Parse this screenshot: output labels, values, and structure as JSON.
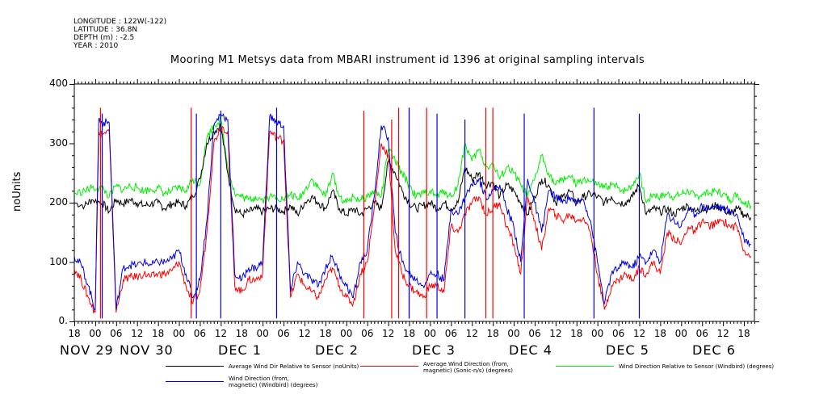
{
  "header": {
    "longitude": "LONGITUDE : 122W(-122)",
    "latitude": "LATITUDE : 36.8N",
    "depth": "DEPTH (m) : -2.5",
    "year": "YEAR : 2010"
  },
  "chart_data": {
    "type": "line",
    "title": "Mooring M1 Metsys data from MBARI instrument id 1396 at original sampling intervals",
    "ylabel": "noUnits",
    "ylim": [
      0,
      400
    ],
    "yticks": [
      "0.",
      "100",
      "200",
      "300",
      "400"
    ],
    "xlim_hours": [
      0,
      195
    ],
    "x_unit": "hours since NOV 28 18:00",
    "xtick_labels": [
      "18",
      "00",
      "06",
      "12",
      "18",
      "00",
      "06",
      "12",
      "18",
      "00",
      "06",
      "12",
      "18",
      "00",
      "06",
      "12",
      "18",
      "00",
      "06",
      "12",
      "18",
      "00",
      "06",
      "12",
      "18",
      "00",
      "06",
      "12",
      "18",
      "00",
      "06",
      "12",
      "18"
    ],
    "day_labels": [
      "NOV 29",
      "NOV 30",
      "DEC  1",
      "DEC  2",
      "DEC  3",
      "DEC  4",
      "DEC  5",
      "DEC  6"
    ],
    "series": [
      {
        "name": "Average Wind Dir Relative to Sensor (noUnits)",
        "color": "#000000",
        "x": [
          0,
          3,
          5,
          8,
          10,
          12,
          14,
          16,
          18,
          20,
          22,
          24,
          26,
          28,
          30,
          32,
          34,
          36,
          38,
          40,
          42,
          44,
          46,
          48,
          50,
          52,
          54,
          56,
          58,
          60,
          62,
          64,
          66,
          68,
          70,
          72,
          74,
          76,
          78,
          80,
          82,
          84,
          86,
          88,
          90,
          92,
          94,
          96,
          98,
          100,
          102,
          104,
          106,
          108,
          110,
          112,
          114,
          116,
          118,
          120,
          122,
          124,
          126,
          128,
          130,
          132,
          134,
          136,
          138,
          140,
          142,
          144,
          146,
          148,
          150,
          152,
          154,
          156,
          158,
          160,
          162,
          164,
          166,
          168,
          170,
          172,
          174,
          176,
          178,
          180,
          182,
          184,
          186,
          188,
          190,
          192,
          194
        ],
        "y": [
          200,
          195,
          205,
          200,
          185,
          205,
          198,
          205,
          200,
          195,
          198,
          200,
          190,
          198,
          200,
          195,
          210,
          240,
          300,
          320,
          330,
          250,
          190,
          180,
          185,
          190,
          185,
          190,
          190,
          185,
          195,
          180,
          200,
          210,
          200,
          190,
          220,
          190,
          180,
          190,
          180,
          190,
          200,
          190,
          270,
          250,
          220,
          200,
          190,
          195,
          200,
          190,
          200,
          190,
          200,
          260,
          240,
          250,
          230,
          235,
          210,
          230,
          220,
          200,
          180,
          210,
          240,
          230,
          200,
          210,
          220,
          200,
          210,
          215,
          210,
          200,
          210,
          200,
          200,
          210,
          230,
          180,
          190,
          185,
          190,
          180,
          190,
          195,
          185,
          190,
          190,
          195,
          190,
          180,
          190,
          180,
          175
        ]
      },
      {
        "name": "Average Wind Direction (from, magnetic) (Sonic-n/s) (degrees)",
        "color": "#ff0000",
        "x": [
          0,
          2,
          4,
          6,
          7,
          8,
          10,
          12,
          14,
          16,
          18,
          20,
          22,
          24,
          26,
          28,
          30,
          32,
          34,
          36,
          38,
          40,
          42,
          44,
          46,
          48,
          50,
          52,
          54,
          56,
          58,
          60,
          62,
          64,
          66,
          68,
          70,
          72,
          74,
          76,
          78,
          80,
          82,
          84,
          86,
          88,
          90,
          92,
          94,
          96,
          98,
          100,
          102,
          104,
          106,
          108,
          110,
          112,
          114,
          116,
          118,
          120,
          122,
          124,
          126,
          128,
          130,
          132,
          134,
          136,
          138,
          140,
          142,
          144,
          146,
          148,
          150,
          152,
          154,
          156,
          158,
          160,
          162,
          164,
          166,
          168,
          170,
          172,
          174,
          176,
          178,
          180,
          182,
          184,
          186,
          188,
          190,
          192,
          194
        ],
        "y": [
          90,
          70,
          40,
          15,
          320,
          315,
          320,
          15,
          70,
          75,
          75,
          80,
          75,
          80,
          80,
          85,
          100,
          60,
          30,
          50,
          150,
          300,
          330,
          320,
          60,
          50,
          70,
          70,
          80,
          320,
          310,
          305,
          40,
          80,
          60,
          50,
          40,
          70,
          90,
          60,
          40,
          30,
          80,
          100,
          190,
          300,
          280,
          120,
          80,
          60,
          50,
          40,
          60,
          60,
          50,
          160,
          150,
          180,
          200,
          210,
          180,
          190,
          200,
          160,
          130,
          80,
          210,
          170,
          120,
          190,
          180,
          170,
          180,
          170,
          175,
          150,
          80,
          20,
          60,
          70,
          80,
          70,
          90,
          80,
          100,
          80,
          150,
          140,
          130,
          160,
          150,
          170,
          160,
          165,
          170,
          160,
          160,
          120,
          110
        ]
      },
      {
        "name": "Wind Direction Relative to Sensor (Windbird) (degrees)",
        "color": "#00ee00",
        "x": [
          0,
          3,
          5,
          8,
          10,
          12,
          14,
          16,
          18,
          20,
          22,
          24,
          26,
          28,
          30,
          32,
          34,
          36,
          38,
          40,
          42,
          44,
          46,
          48,
          50,
          52,
          54,
          56,
          58,
          60,
          62,
          64,
          66,
          68,
          70,
          72,
          74,
          76,
          78,
          80,
          82,
          84,
          86,
          88,
          90,
          92,
          94,
          96,
          98,
          100,
          102,
          104,
          106,
          108,
          110,
          112,
          114,
          116,
          118,
          120,
          122,
          124,
          126,
          128,
          130,
          132,
          134,
          136,
          138,
          140,
          142,
          144,
          146,
          148,
          150,
          152,
          154,
          156,
          158,
          160,
          162,
          164,
          166,
          168,
          170,
          172,
          174,
          176,
          178,
          180,
          182,
          184,
          186,
          188,
          190,
          192,
          194
        ],
        "y": [
          215,
          220,
          225,
          225,
          210,
          228,
          222,
          228,
          225,
          220,
          222,
          225,
          215,
          220,
          225,
          220,
          240,
          230,
          310,
          330,
          340,
          260,
          215,
          210,
          205,
          210,
          205,
          210,
          210,
          205,
          215,
          205,
          220,
          240,
          225,
          210,
          250,
          210,
          200,
          210,
          205,
          210,
          220,
          210,
          290,
          270,
          250,
          230,
          210,
          215,
          220,
          210,
          220,
          210,
          230,
          300,
          270,
          290,
          260,
          265,
          240,
          260,
          250,
          230,
          210,
          240,
          280,
          250,
          230,
          240,
          245,
          230,
          240,
          235,
          230,
          225,
          230,
          225,
          220,
          230,
          250,
          200,
          215,
          210,
          215,
          210,
          215,
          220,
          210,
          215,
          215,
          220,
          215,
          205,
          215,
          200,
          195
        ]
      },
      {
        "name": "Wind Direction (from, magnetic) (Windbird) (degrees)",
        "color": "#0000dd",
        "x": [
          0,
          2,
          4,
          6,
          7,
          8,
          10,
          12,
          14,
          16,
          18,
          20,
          22,
          24,
          26,
          28,
          30,
          32,
          34,
          36,
          38,
          40,
          42,
          44,
          46,
          48,
          50,
          52,
          54,
          56,
          58,
          60,
          62,
          64,
          66,
          68,
          70,
          72,
          74,
          76,
          78,
          80,
          82,
          84,
          86,
          88,
          90,
          92,
          94,
          96,
          98,
          100,
          102,
          104,
          106,
          108,
          110,
          112,
          114,
          116,
          118,
          120,
          122,
          124,
          126,
          128,
          130,
          132,
          134,
          136,
          138,
          140,
          142,
          144,
          146,
          148,
          150,
          152,
          154,
          156,
          158,
          160,
          162,
          164,
          166,
          168,
          170,
          172,
          174,
          176,
          178,
          180,
          182,
          184,
          186,
          188,
          190,
          192,
          194
        ],
        "y": [
          110,
          95,
          60,
          20,
          340,
          335,
          335,
          20,
          90,
          95,
          95,
          100,
          95,
          100,
          100,
          105,
          120,
          80,
          40,
          70,
          170,
          330,
          350,
          340,
          80,
          70,
          90,
          90,
          100,
          345,
          335,
          330,
          50,
          100,
          80,
          70,
          60,
          90,
          110,
          80,
          60,
          40,
          100,
          120,
          210,
          330,
          310,
          150,
          100,
          80,
          70,
          60,
          80,
          80,
          70,
          190,
          180,
          210,
          230,
          240,
          210,
          220,
          230,
          190,
          160,
          100,
          240,
          200,
          150,
          220,
          210,
          200,
          210,
          200,
          205,
          170,
          100,
          30,
          80,
          90,
          100,
          90,
          110,
          100,
          120,
          100,
          180,
          170,
          160,
          190,
          180,
          195,
          190,
          195,
          190,
          185,
          180,
          140,
          130
        ]
      }
    ],
    "spikes": [
      {
        "series": 1,
        "x": [
          7.5,
          33.5,
          83,
          91,
          93,
          96,
          101,
          118,
          120
        ],
        "y": [
          360,
          360,
          355,
          340,
          360,
          360,
          360,
          360,
          360
        ]
      },
      {
        "series": 3,
        "x": [
          8,
          35,
          42,
          58,
          96,
          104,
          112,
          129,
          149,
          162
        ],
        "y": [
          350,
          350,
          355,
          360,
          360,
          350,
          340,
          350,
          360,
          350
        ]
      }
    ],
    "legend": [
      {
        "label": "Average Wind Dir Relative to Sensor (noUnits)",
        "color": "#000000"
      },
      {
        "label": "Average Wind Direction (from,",
        "label2": "magnetic) (Sonic-n/s) (degrees)",
        "color": "#ff0000"
      },
      {
        "label": "Wind Direction Relative to Sensor (Windbird) (degrees)",
        "color": "#00ee00"
      },
      {
        "label": "Wind Direction (from,",
        "label2": "magnetic) (Windbird) (degrees)",
        "color": "#0000dd"
      }
    ]
  }
}
